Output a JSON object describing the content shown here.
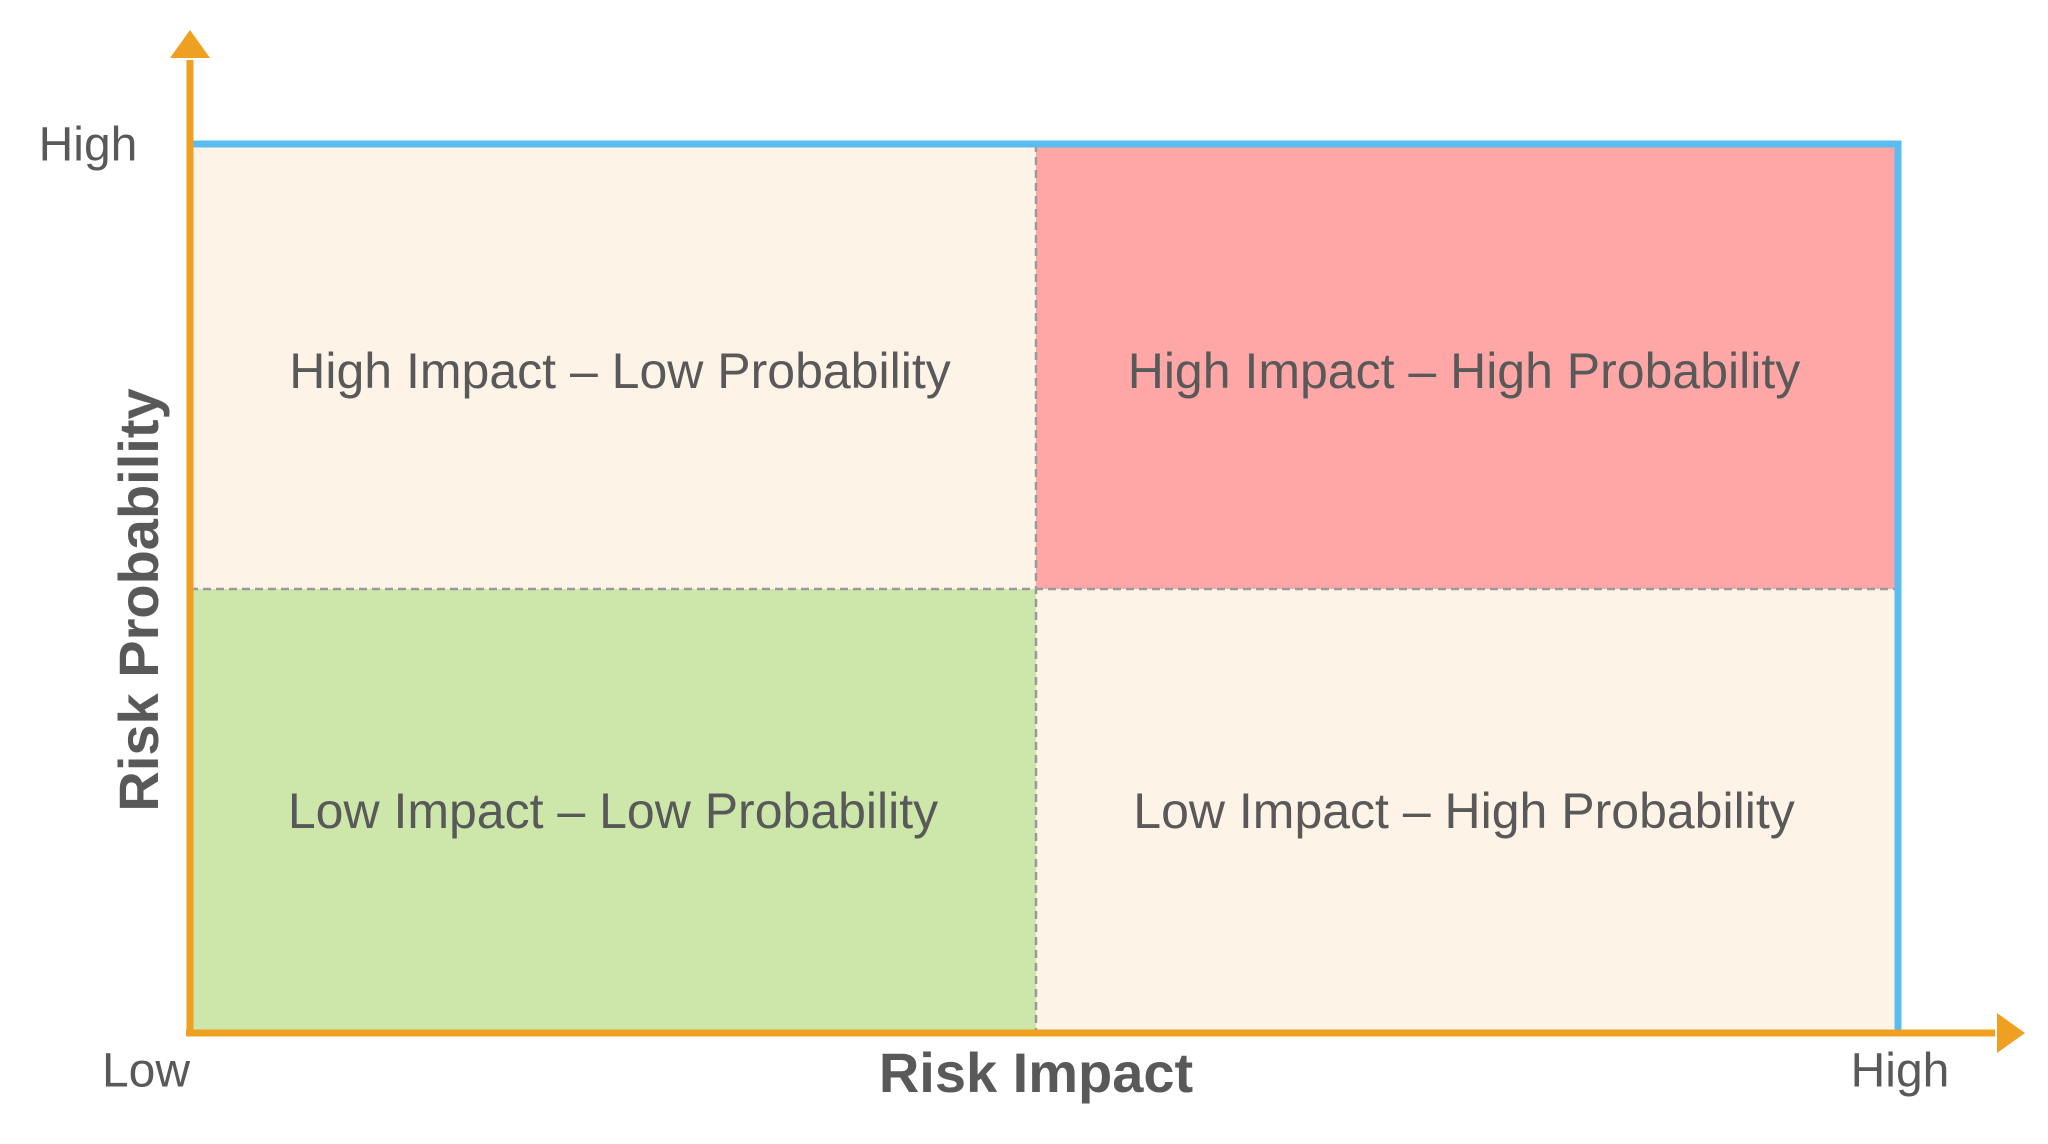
{
  "x_axis": {
    "title": "Risk Impact",
    "low": "Low",
    "high": "High"
  },
  "y_axis": {
    "title": "Risk Probability",
    "high": "High"
  },
  "quadrants": [
    {
      "label": "High Impact – Low Probability"
    },
    {
      "label": "High Impact – High Probability"
    },
    {
      "label": "Low Impact – Low Probability"
    },
    {
      "label": "Low Impact – High Probability"
    }
  ]
}
